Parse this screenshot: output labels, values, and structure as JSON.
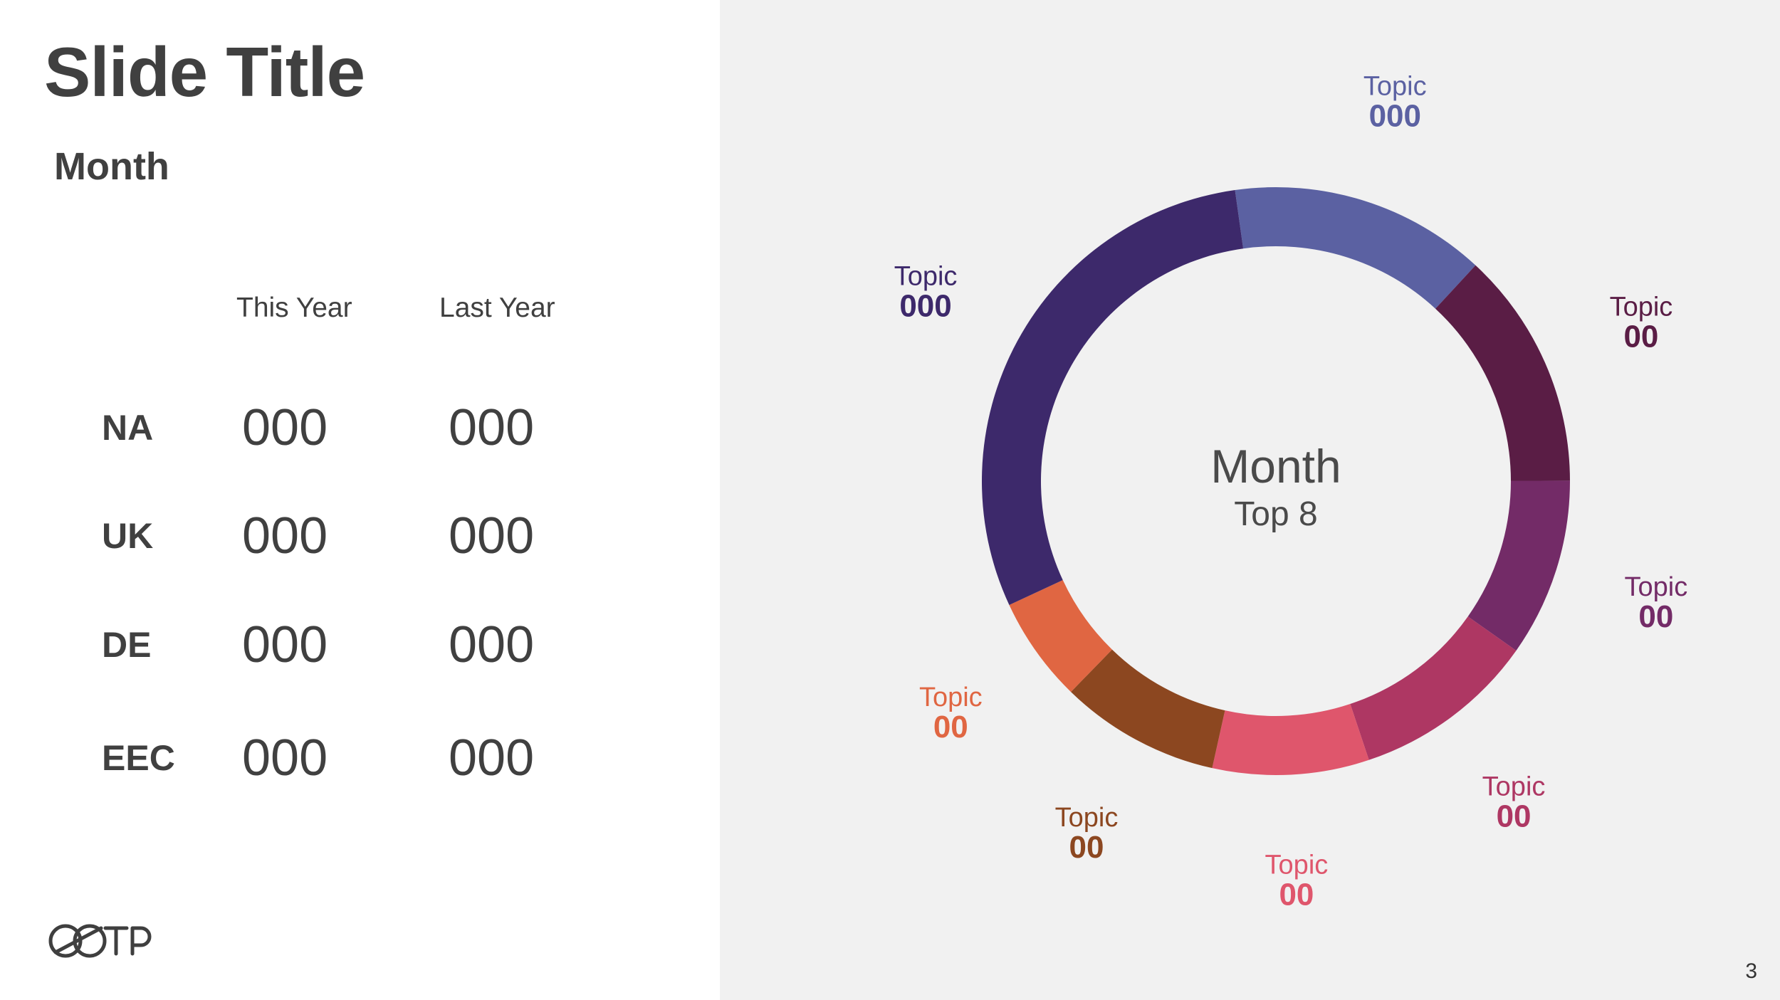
{
  "slide": {
    "title": "Slide Title",
    "subtitle": "Month",
    "page_number": "3"
  },
  "table": {
    "headers": {
      "this_year": "This Year",
      "last_year": "Last Year"
    },
    "rows": [
      {
        "label": "NA",
        "this_year": "000",
        "last_year": "000"
      },
      {
        "label": "UK",
        "this_year": "000",
        "last_year": "000"
      },
      {
        "label": "DE",
        "this_year": "000",
        "last_year": "000"
      },
      {
        "label": "EEC",
        "this_year": "000",
        "last_year": "000"
      }
    ]
  },
  "logo": {
    "icon": "brand-logo-icon"
  },
  "chart_data": {
    "type": "pie",
    "center_title": "Month",
    "center_subtitle": "Top 8",
    "slices": [
      {
        "label": "Topic",
        "value_label": "000",
        "share": 0.141,
        "color": "#5b61a2"
      },
      {
        "label": "Topic",
        "value_label": "00",
        "share": 0.131,
        "color": "#5a1d45"
      },
      {
        "label": "Topic",
        "value_label": "00",
        "share": 0.098,
        "color": "#732b67"
      },
      {
        "label": "Topic",
        "value_label": "00",
        "share": 0.101,
        "color": "#ae3763"
      },
      {
        "label": "Topic",
        "value_label": "00",
        "share": 0.086,
        "color": "#df566c"
      },
      {
        "label": "Topic",
        "value_label": "00",
        "share": 0.088,
        "color": "#8c4720"
      },
      {
        "label": "Topic",
        "value_label": "00",
        "share": 0.058,
        "color": "#e06642"
      },
      {
        "label": "Topic",
        "value_label": "000",
        "share": 0.297,
        "color": "#3d296b"
      }
    ]
  }
}
